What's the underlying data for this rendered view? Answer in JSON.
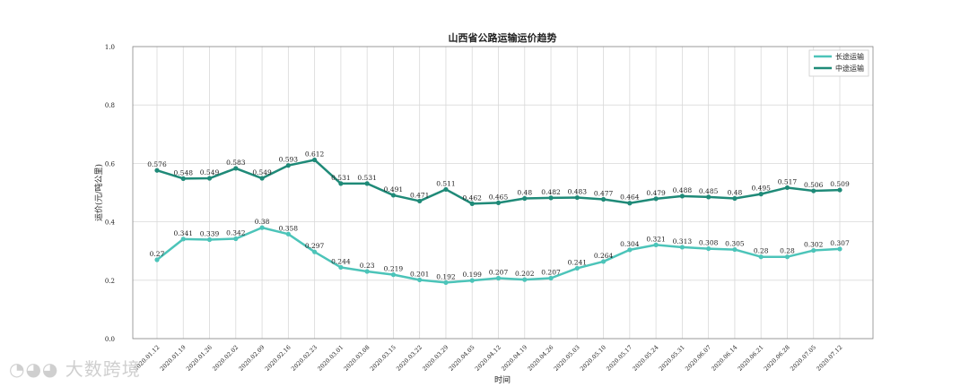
{
  "chart_data": {
    "type": "line",
    "title": "山西省公路运输运价趋势",
    "xlabel": "时间",
    "ylabel": "运价(元/吨公里)",
    "ylim": [
      0,
      1.0
    ],
    "yticks": [
      "0.0",
      "0.2",
      "0.4",
      "0.6",
      "0.8",
      "1.0"
    ],
    "grid": true,
    "legend_position": "top-right",
    "x": [
      "2020.01.12",
      "2020.01.19",
      "2020.01.26",
      "2020.02.02",
      "2020.02.09",
      "2020.02.16",
      "2020.02.23",
      "2020.03.01",
      "2020.03.08",
      "2020.03.15",
      "2020.03.22",
      "2020.03.29",
      "2020.04.05",
      "2020.04.12",
      "2020.04.19",
      "2020.04.26",
      "2020.05.03",
      "2020.05.10",
      "2020.05.17",
      "2020.05.24",
      "2020.05.31",
      "2020.06.07",
      "2020.06.14",
      "2020.06.21",
      "2020.06.28",
      "2020.07.05",
      "2020.07.12"
    ],
    "series": [
      {
        "name": "长途运输",
        "color": "#4cc4b9",
        "values": [
          0.27,
          0.341,
          0.339,
          0.342,
          0.38,
          0.358,
          0.297,
          0.244,
          0.23,
          0.219,
          0.201,
          0.192,
          0.199,
          0.207,
          0.202,
          0.207,
          0.241,
          0.264,
          0.304,
          0.321,
          0.313,
          0.308,
          0.305,
          0.28,
          0.28,
          0.302,
          0.307
        ],
        "labels": [
          "0.27",
          "0.341",
          "0.339",
          "0.342",
          "0.38",
          "0.358",
          "0.297",
          "0.244",
          "0.23",
          "0.219",
          "0.201",
          "0.192",
          "0.199",
          "0.207",
          "0.202",
          "0.207",
          "0.241",
          "0.264",
          "0.304",
          "0.321",
          "0.313",
          "0.308",
          "0.305",
          "0.28",
          "0.28",
          "0.302",
          "0.307"
        ]
      },
      {
        "name": "中途运输",
        "color": "#1f8a78",
        "values": [
          0.576,
          0.548,
          0.549,
          0.583,
          0.549,
          0.593,
          0.612,
          0.531,
          0.531,
          0.491,
          0.471,
          0.511,
          0.462,
          0.465,
          0.48,
          0.482,
          0.483,
          0.477,
          0.464,
          0.479,
          0.488,
          0.485,
          0.48,
          0.495,
          0.517,
          0.506,
          0.509
        ],
        "labels": [
          "0.576",
          "0.548",
          "0.549",
          "0.583",
          "0.549",
          "0.593",
          "0.612",
          "0.531",
          "0.531",
          "0.491",
          "0.471",
          "0.511",
          "0.462",
          "0.465",
          "0.48",
          "0.482",
          "0.483",
          "0.477",
          "0.464",
          "0.479",
          "0.488",
          "0.485",
          "0.48",
          "0.495",
          "0.517",
          "0.506",
          "0.509"
        ]
      }
    ]
  },
  "watermark": {
    "icon": "dashuju-logo-icon",
    "text": "大数跨境"
  }
}
